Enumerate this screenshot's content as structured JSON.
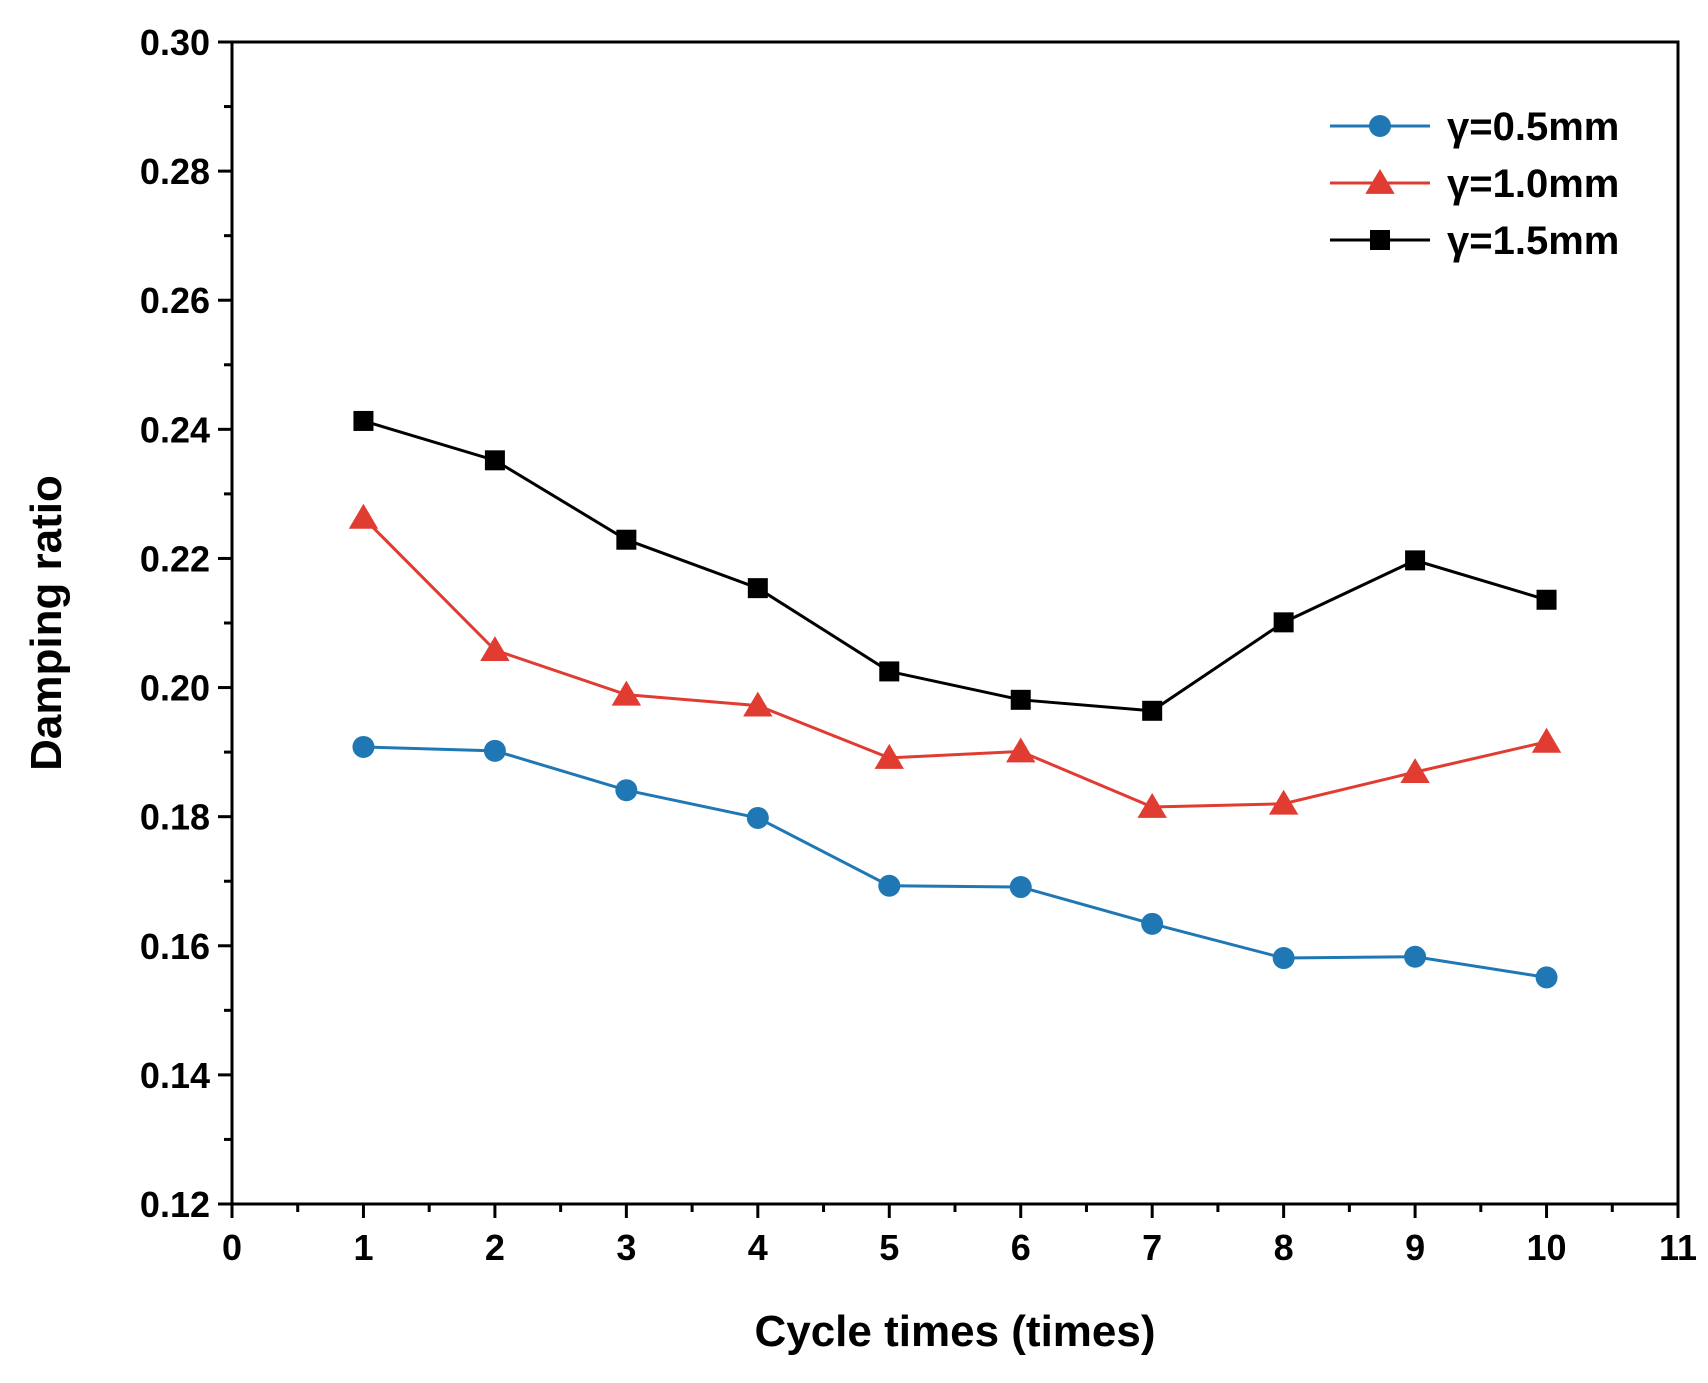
{
  "chart_data": {
    "type": "line",
    "title": "",
    "xlabel": "Cycle times (times)",
    "ylabel": "Damping ratio",
    "xlim": [
      0,
      11
    ],
    "ylim": [
      0.12,
      0.3
    ],
    "xticks": [
      "0",
      "1",
      "2",
      "3",
      "4",
      "5",
      "6",
      "7",
      "8",
      "9",
      "10",
      "11"
    ],
    "yticks": [
      "0.12",
      "0.14",
      "0.16",
      "0.18",
      "0.20",
      "0.22",
      "0.24",
      "0.26",
      "0.28",
      "0.30"
    ],
    "grid": false,
    "legend_position": "top-right",
    "x": [
      1,
      2,
      3,
      4,
      5,
      6,
      7,
      8,
      9,
      10
    ],
    "series": [
      {
        "name": "γ=0.5mm",
        "color": "#1f78b4",
        "marker": "circle",
        "values": [
          0.1908,
          0.1902,
          0.1841,
          0.1798,
          0.1693,
          0.1691,
          0.1634,
          0.1581,
          0.1583,
          0.1551
        ]
      },
      {
        "name": "γ=1.0mm",
        "color": "#e03c31",
        "marker": "triangle",
        "values": [
          0.2263,
          0.2058,
          0.1989,
          0.1972,
          0.1891,
          0.1901,
          0.1815,
          0.182,
          0.1869,
          0.1916
        ]
      },
      {
        "name": "γ=1.5mm",
        "color": "#000000",
        "marker": "square",
        "values": [
          0.2413,
          0.2352,
          0.2229,
          0.2154,
          0.2025,
          0.1981,
          0.1964,
          0.2101,
          0.2197,
          0.2136
        ]
      }
    ]
  }
}
